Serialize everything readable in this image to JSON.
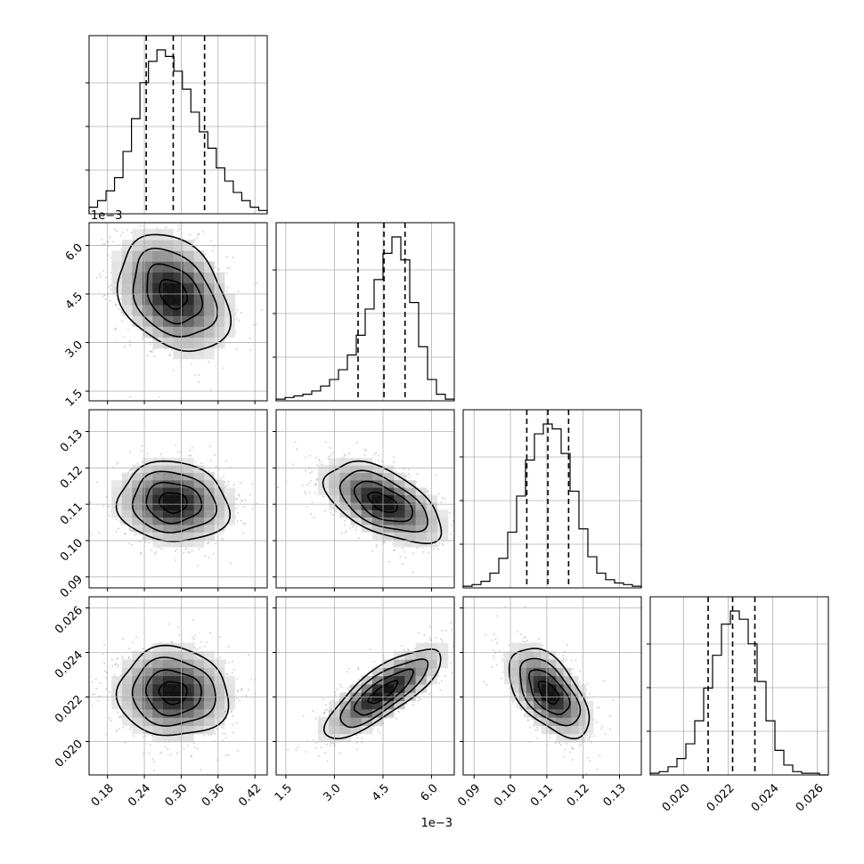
{
  "chart_data": {
    "type": "corner",
    "n_parameters": 4,
    "grid": true,
    "params": [
      {
        "range": [
          0.15,
          0.44
        ],
        "ticks": [
          0.18,
          0.24,
          0.3,
          0.36,
          0.42
        ],
        "tick_labels": [
          "0.18",
          "0.24",
          "0.30",
          "0.36",
          "0.42"
        ],
        "offset_text": ""
      },
      {
        "range": [
          1.2,
          6.7
        ],
        "ticks": [
          1.5,
          3.0,
          4.5,
          6.0
        ],
        "tick_labels": [
          "1.5",
          "3.0",
          "4.5",
          "6.0"
        ],
        "offset_text": "1e−3"
      },
      {
        "range": [
          0.087,
          0.136
        ],
        "ticks": [
          0.09,
          0.1,
          0.11,
          0.12,
          0.13
        ],
        "tick_labels": [
          "0.09",
          "0.10",
          "0.11",
          "0.12",
          "0.13"
        ],
        "offset_text": ""
      },
      {
        "range": [
          0.0185,
          0.0265
        ],
        "ticks": [
          0.02,
          0.022,
          0.024,
          0.026
        ],
        "tick_labels": [
          "0.020",
          "0.022",
          "0.024",
          "0.026"
        ],
        "offset_text": ""
      }
    ],
    "quantiles": [
      [
        0.243,
        0.287,
        0.338
      ],
      [
        3.73,
        4.53,
        5.18
      ],
      [
        0.1045,
        0.1103,
        0.116
      ],
      [
        0.0211,
        0.0222,
        0.0232
      ]
    ],
    "histograms": [
      {
        "counts": [
          0.04,
          0.08,
          0.14,
          0.22,
          0.38,
          0.58,
          0.8,
          0.93,
          1.0,
          0.96,
          0.87,
          0.76,
          0.62,
          0.5,
          0.4,
          0.28,
          0.2,
          0.13,
          0.08,
          0.04,
          0.02
        ]
      },
      {
        "counts": [
          0.01,
          0.02,
          0.03,
          0.04,
          0.06,
          0.09,
          0.13,
          0.19,
          0.28,
          0.4,
          0.56,
          0.74,
          0.9,
          1.0,
          0.86,
          0.6,
          0.33,
          0.13,
          0.04,
          0.01
        ]
      },
      {
        "counts": [
          0.01,
          0.02,
          0.04,
          0.09,
          0.18,
          0.34,
          0.56,
          0.78,
          0.94,
          1.0,
          0.97,
          0.82,
          0.59,
          0.36,
          0.19,
          0.09,
          0.05,
          0.03,
          0.02,
          0.01
        ]
      },
      {
        "counts": [
          0.01,
          0.02,
          0.05,
          0.1,
          0.19,
          0.33,
          0.53,
          0.73,
          0.92,
          1.0,
          0.95,
          0.8,
          0.57,
          0.33,
          0.15,
          0.06,
          0.02,
          0.01,
          0.01,
          0.0
        ]
      }
    ],
    "pairs": [
      {
        "i": 1,
        "j": 0,
        "mean": [
          0.287,
          4.5
        ],
        "sd": [
          0.045,
          0.9
        ],
        "rho": -0.3
      },
      {
        "i": 2,
        "j": 0,
        "mean": [
          0.287,
          0.1105
        ],
        "sd": [
          0.045,
          0.0055
        ],
        "rho": -0.08
      },
      {
        "i": 2,
        "j": 1,
        "mean": [
          4.5,
          0.1105
        ],
        "sd": [
          0.9,
          0.0055
        ],
        "rho": -0.55
      },
      {
        "i": 3,
        "j": 0,
        "mean": [
          0.287,
          0.0222
        ],
        "sd": [
          0.045,
          0.001
        ],
        "rho": -0.05
      },
      {
        "i": 3,
        "j": 1,
        "mean": [
          4.5,
          0.0222
        ],
        "sd": [
          0.9,
          0.001
        ],
        "rho": 0.8
      },
      {
        "i": 3,
        "j": 2,
        "mean": [
          0.1105,
          0.0222
        ],
        "sd": [
          0.0055,
          0.001
        ],
        "rho": -0.55
      }
    ],
    "contour_levels_sigma": [
      0.5,
      1.0,
      1.5,
      2.0
    ]
  }
}
